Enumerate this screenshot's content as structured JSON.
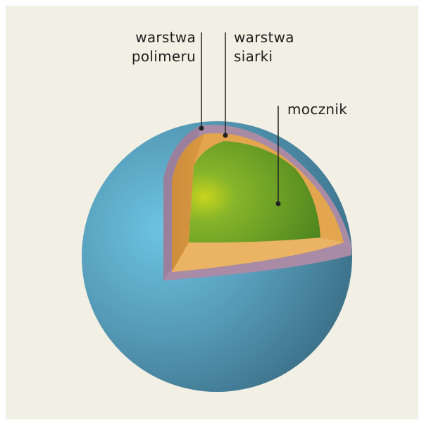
{
  "labels": {
    "polymer_layer": [
      "warstwa",
      "polimeru"
    ],
    "sulfur_layer": [
      "warstwa",
      "siarki"
    ],
    "urea_core": "mocznik"
  },
  "colors": {
    "background": "#f2f0e5",
    "outer_sphere": "#5fa3c0",
    "polymer": "#a98ba5",
    "sulfur": "#e0a24a",
    "urea": "#6aa525"
  }
}
